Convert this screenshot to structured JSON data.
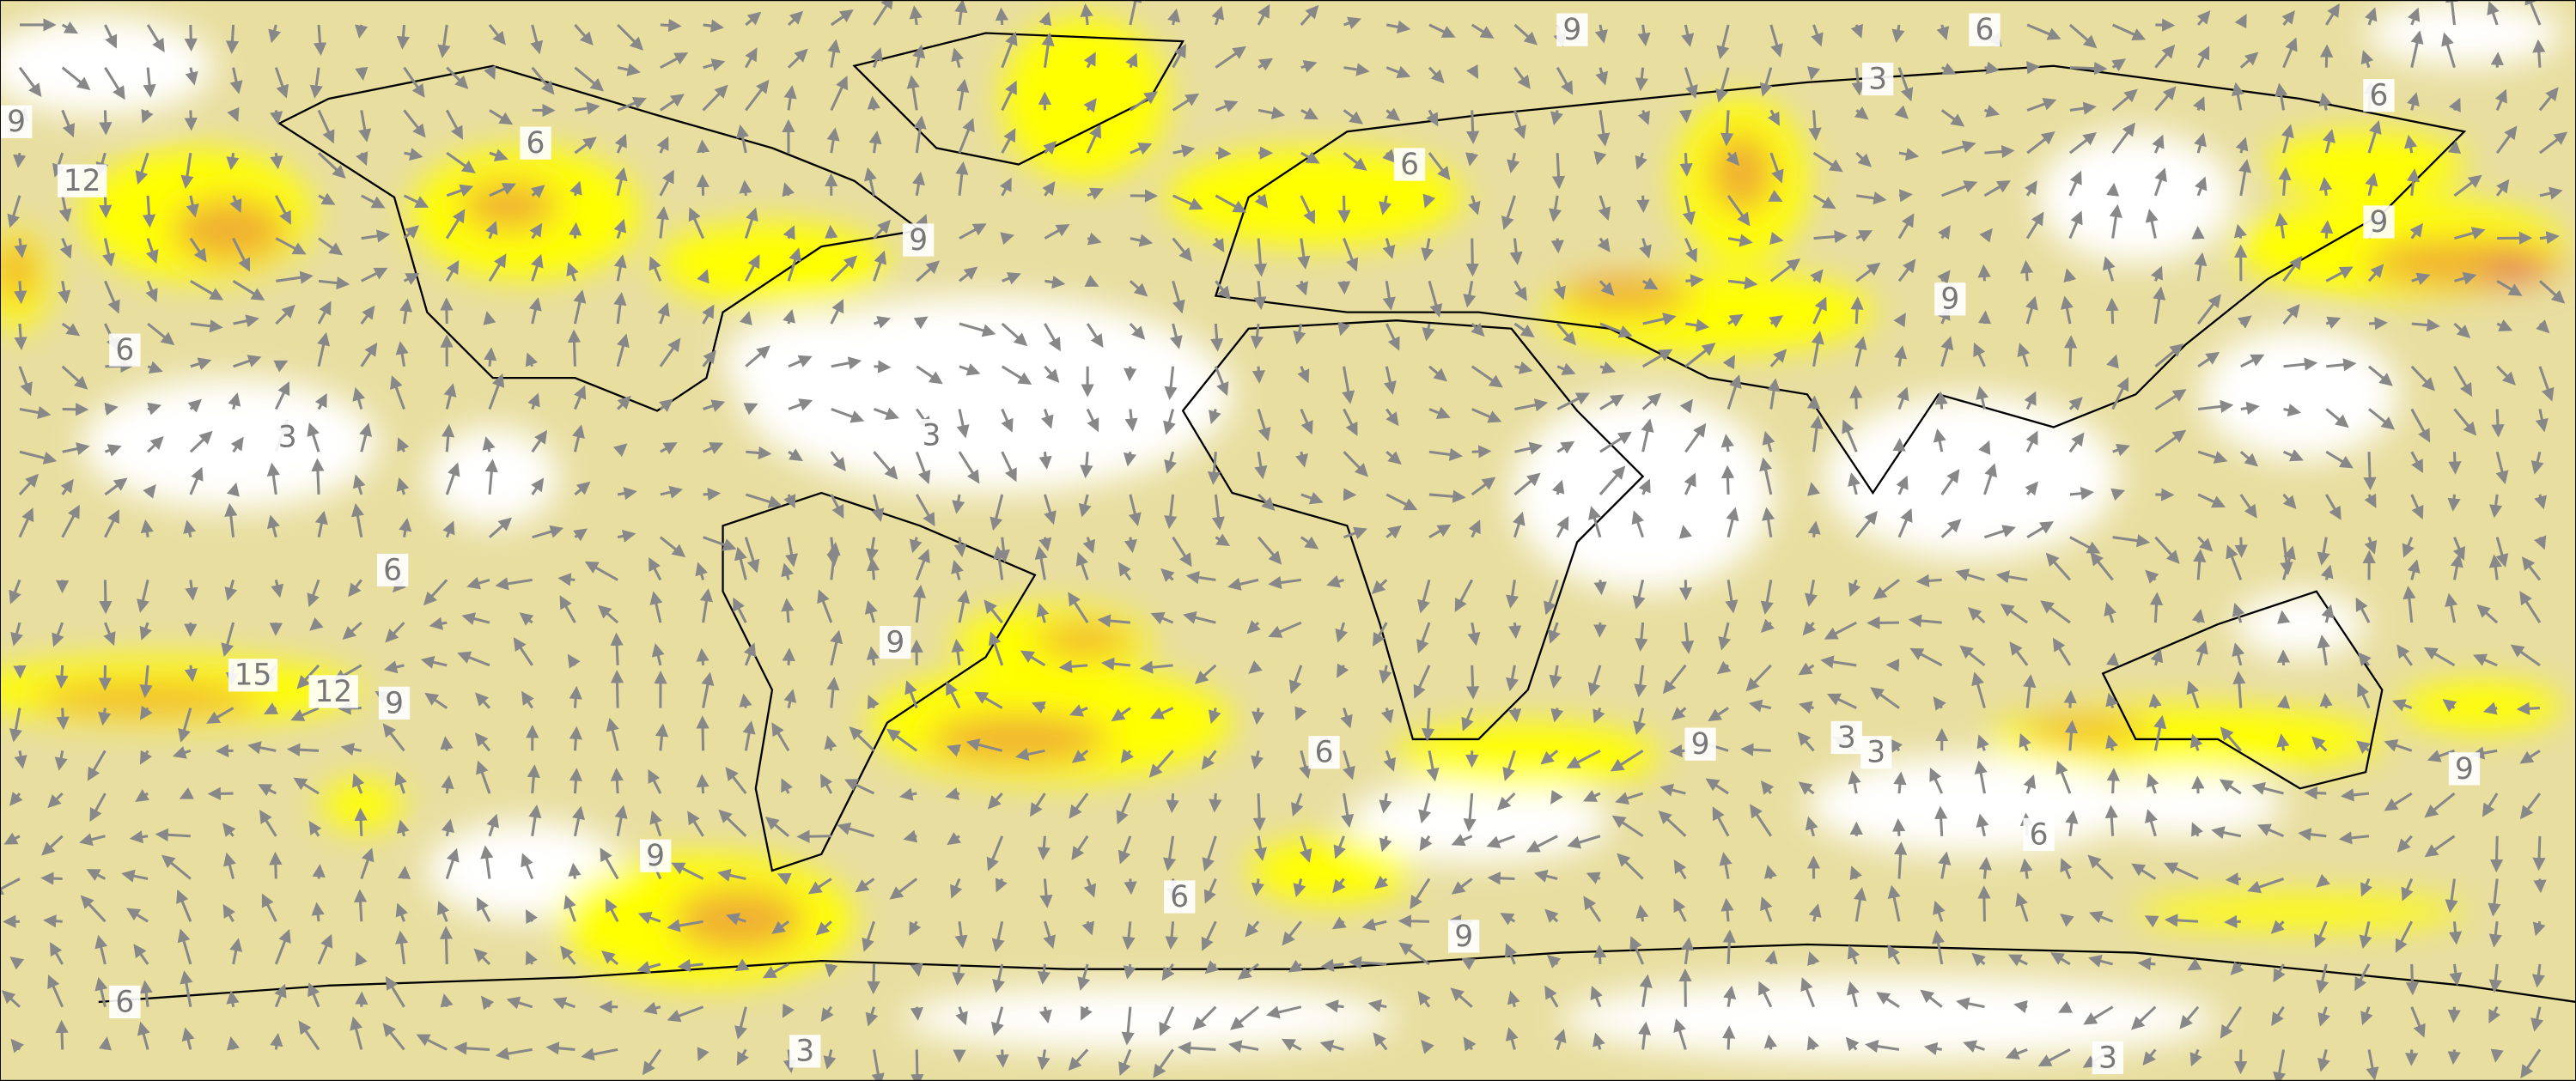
{
  "contour_labels": [
    "9",
    "6",
    "3",
    "6",
    "9",
    "12",
    "6",
    "6",
    "9",
    "9",
    "9",
    "6",
    "3",
    "3",
    "6",
    "9",
    "15",
    "12",
    "9",
    "3",
    "3",
    "9",
    "6",
    "9",
    "6",
    "9",
    "6",
    "9",
    "6",
    "3",
    "3"
  ]
}
